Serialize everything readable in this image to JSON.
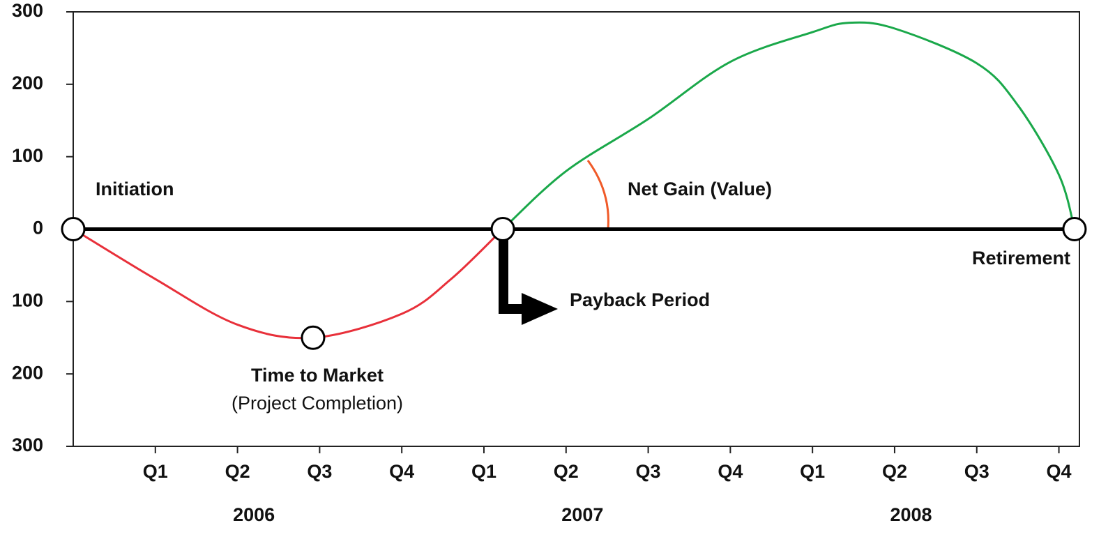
{
  "chart_data": {
    "type": "line",
    "xlim": [
      0,
      12.25
    ],
    "xticks": [
      {
        "value": 1,
        "label": "Q1"
      },
      {
        "value": 2,
        "label": "Q2"
      },
      {
        "value": 3,
        "label": "Q3"
      },
      {
        "value": 4,
        "label": "Q4"
      },
      {
        "value": 5,
        "label": "Q1"
      },
      {
        "value": 6,
        "label": "Q2"
      },
      {
        "value": 7,
        "label": "Q3"
      },
      {
        "value": 8,
        "label": "Q4"
      },
      {
        "value": 9,
        "label": "Q1"
      },
      {
        "value": 10,
        "label": "Q2"
      },
      {
        "value": 11,
        "label": "Q3"
      },
      {
        "value": 12,
        "label": "Q4"
      }
    ],
    "years": [
      "2006",
      "2007",
      "2008"
    ],
    "ylim": [
      -300,
      300
    ],
    "yticks": [
      300,
      200,
      100,
      0,
      {
        "value": -100,
        "label": "100"
      },
      {
        "value": -200,
        "label": "200"
      },
      {
        "value": -300,
        "label": "300"
      }
    ],
    "series": [
      {
        "color": "#e8303a",
        "x": [
          0,
          1,
          2,
          2.92,
          4,
          4.6,
          5.23
        ],
        "values": [
          0,
          -69,
          -132,
          -150,
          -117,
          -69,
          0
        ]
      },
      {
        "color": "#1aa84a",
        "x": [
          5.23,
          6,
          7,
          8,
          9,
          9.45,
          10,
          11,
          11.5,
          12,
          12.19
        ],
        "values": [
          0,
          80,
          152,
          231,
          272,
          285,
          277,
          229,
          171,
          75,
          0
        ]
      }
    ],
    "milestones": [
      {
        "label": "Initiation",
        "x": 0,
        "y": 0
      },
      {
        "label": "Time to Market",
        "sublabel": "(Project Completion)",
        "x": 2.92,
        "y": -150
      },
      {
        "label": "Payback Period",
        "x": 5.23,
        "y": 0
      },
      {
        "label": "Retirement",
        "x": 12.19,
        "y": 0
      }
    ],
    "annotation": "Net Gain (Value)"
  }
}
